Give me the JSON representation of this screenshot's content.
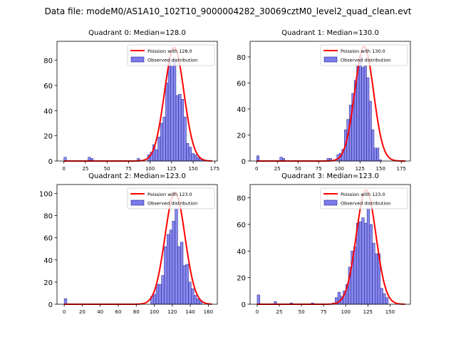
{
  "figure_title": "Data file: modeM0/AS1A10_102T10_9000004282_30069cztM0_level2_quad_clean.evt",
  "colors": {
    "bar_fill": "#7b7bea",
    "bar_edge": "#1f1f8f",
    "poisson_line": "#ff0000",
    "axis": "#000000"
  },
  "chart_data": [
    {
      "type": "bar",
      "title": "Quadrant 0: Median=128.0",
      "xlim": [
        -8,
        178
      ],
      "ylim": [
        0,
        95
      ],
      "xticks": [
        0,
        25,
        50,
        75,
        100,
        125,
        150,
        175
      ],
      "yticks": [
        0,
        20,
        40,
        60,
        80
      ],
      "bin_width": 3,
      "bins": [
        [
          0,
          3
        ],
        [
          28,
          3
        ],
        [
          31,
          2
        ],
        [
          85,
          2
        ],
        [
          97,
          5
        ],
        [
          100,
          7
        ],
        [
          103,
          13
        ],
        [
          106,
          9
        ],
        [
          109,
          19
        ],
        [
          112,
          30
        ],
        [
          115,
          35
        ],
        [
          118,
          62
        ],
        [
          121,
          80
        ],
        [
          124,
          75
        ],
        [
          127,
          80
        ],
        [
          130,
          52
        ],
        [
          133,
          53
        ],
        [
          136,
          49
        ],
        [
          139,
          35
        ],
        [
          142,
          14
        ],
        [
          145,
          11
        ],
        [
          148,
          6
        ],
        [
          151,
          5
        ],
        [
          154,
          3
        ],
        [
          157,
          2
        ],
        [
          160,
          1
        ]
      ],
      "poisson": {
        "mean": 128.0,
        "peak": 90,
        "sigma": 11.3
      },
      "legend": [
        "Poission with 128.0",
        "Observed distribution"
      ]
    },
    {
      "type": "bar",
      "title": "Quadrant 1: Median=130.0",
      "xlim": [
        -8,
        186
      ],
      "ylim": [
        0,
        92
      ],
      "xticks": [
        0,
        25,
        50,
        75,
        100,
        125,
        150,
        175
      ],
      "yticks": [
        0,
        20,
        40,
        60,
        80
      ],
      "bin_width": 3,
      "bins": [
        [
          0,
          4
        ],
        [
          28,
          3
        ],
        [
          31,
          2
        ],
        [
          85,
          2
        ],
        [
          88,
          2
        ],
        [
          97,
          5
        ],
        [
          100,
          6
        ],
        [
          103,
          9
        ],
        [
          106,
          24
        ],
        [
          109,
          32
        ],
        [
          112,
          43
        ],
        [
          115,
          52
        ],
        [
          118,
          62
        ],
        [
          121,
          73
        ],
        [
          124,
          81
        ],
        [
          127,
          72
        ],
        [
          130,
          73
        ],
        [
          133,
          64
        ],
        [
          136,
          46
        ],
        [
          139,
          24
        ],
        [
          142,
          10
        ],
        [
          145,
          10
        ],
        [
          148,
          1
        ]
      ],
      "poisson": {
        "mean": 130.0,
        "peak": 88,
        "sigma": 11.4
      },
      "legend": [
        "Poission with 130.0",
        "Observed distribution"
      ]
    },
    {
      "type": "bar",
      "title": "Quadrant 2: Median=123.0",
      "xlim": [
        -8,
        170
      ],
      "ylim": [
        0,
        108
      ],
      "xticks": [
        0,
        20,
        40,
        60,
        80,
        100,
        120,
        140,
        160
      ],
      "yticks": [
        0,
        20,
        40,
        60,
        80,
        100
      ],
      "bin_width": 3,
      "bins": [
        [
          0,
          5
        ],
        [
          96,
          7
        ],
        [
          99,
          9
        ],
        [
          102,
          18
        ],
        [
          105,
          18
        ],
        [
          108,
          26
        ],
        [
          111,
          52
        ],
        [
          114,
          63
        ],
        [
          117,
          67
        ],
        [
          120,
          75
        ],
        [
          123,
          86
        ],
        [
          126,
          52
        ],
        [
          129,
          56
        ],
        [
          132,
          35
        ],
        [
          135,
          36
        ],
        [
          138,
          20
        ],
        [
          141,
          14
        ],
        [
          144,
          8
        ],
        [
          147,
          5
        ],
        [
          150,
          3
        ]
      ],
      "poisson": {
        "mean": 123.0,
        "peak": 101,
        "sigma": 11.1
      },
      "legend": [
        "Poission with 123.0",
        "Observed distribution"
      ]
    },
    {
      "type": "bar",
      "title": "Quadrant 3: Median=123.0",
      "xlim": [
        -8,
        173
      ],
      "ylim": [
        0,
        90
      ],
      "xticks": [
        0,
        25,
        50,
        75,
        100,
        125,
        150
      ],
      "yticks": [
        0,
        20,
        40,
        60,
        80
      ],
      "bin_width": 3,
      "bins": [
        [
          0,
          7
        ],
        [
          19,
          2
        ],
        [
          37,
          1
        ],
        [
          61,
          1
        ],
        [
          85,
          1
        ],
        [
          88,
          5
        ],
        [
          91,
          9
        ],
        [
          94,
          6
        ],
        [
          97,
          10
        ],
        [
          100,
          15
        ],
        [
          103,
          28
        ],
        [
          106,
          40
        ],
        [
          109,
          43
        ],
        [
          112,
          61
        ],
        [
          115,
          62
        ],
        [
          118,
          65
        ],
        [
          121,
          61
        ],
        [
          124,
          72
        ],
        [
          127,
          60
        ],
        [
          130,
          46
        ],
        [
          133,
          38
        ],
        [
          136,
          38
        ],
        [
          139,
          12
        ],
        [
          142,
          8
        ],
        [
          145,
          5
        ]
      ],
      "poisson": {
        "mean": 123.0,
        "peak": 86,
        "sigma": 11.1
      },
      "legend": [
        "Poission with 123.0",
        "Observed distribution"
      ]
    }
  ]
}
